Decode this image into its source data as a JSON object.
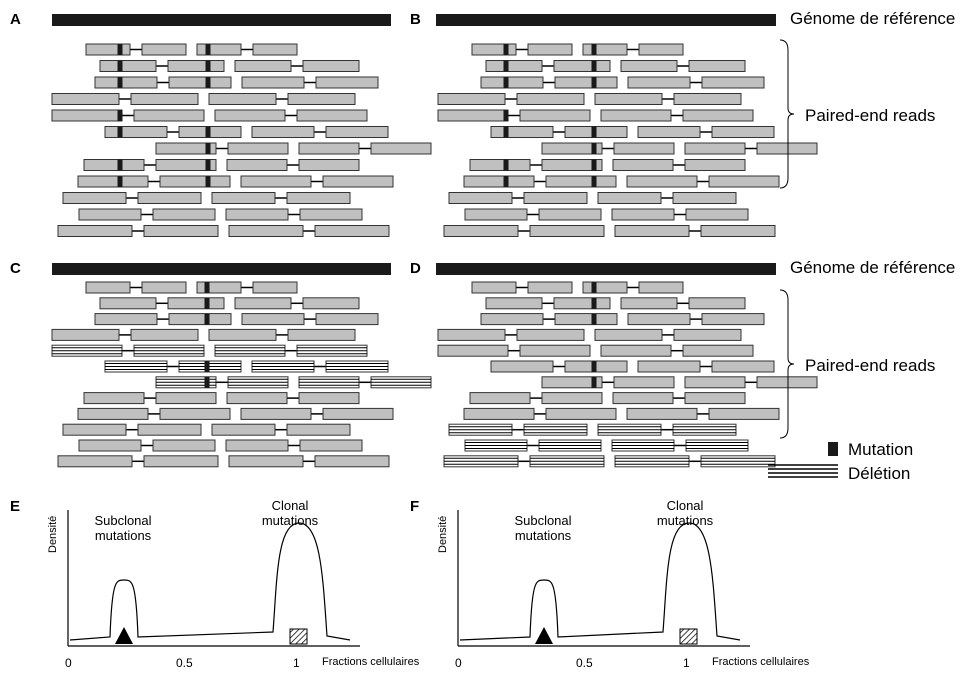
{
  "panels": {
    "a": "A",
    "b": "B",
    "c": "C",
    "d": "D",
    "e": "E",
    "f": "F"
  },
  "labels": {
    "reference_genome_top": "Génome de référence",
    "paired_reads_top": "Paired-end reads",
    "reference_genome_bottom": "Génome de référence",
    "paired_reads_bottom": "Paired-end reads"
  },
  "legend": {
    "mutation": "Mutation",
    "deletion": "Délétion"
  },
  "plot_e": {
    "ylabel": "Densité",
    "xlabel": "Fractions cellulaires",
    "subclonal": "Subclonal mutations",
    "clonal": "Clonal mutations",
    "ticks": [
      "0",
      "0.5",
      "1"
    ]
  },
  "plot_f": {
    "ylabel": "Densité",
    "xlabel": "Fractions cellulaires",
    "subclonal": "Subclonal mutations",
    "clonal": "Clonal mutations",
    "ticks": [
      "0",
      "0.5",
      "1"
    ]
  },
  "colors": {
    "read_fill": "#c0c0c0",
    "read_stroke": "#333333",
    "genome": "#1a1a1a",
    "mutation": "#1a1a1a"
  }
}
